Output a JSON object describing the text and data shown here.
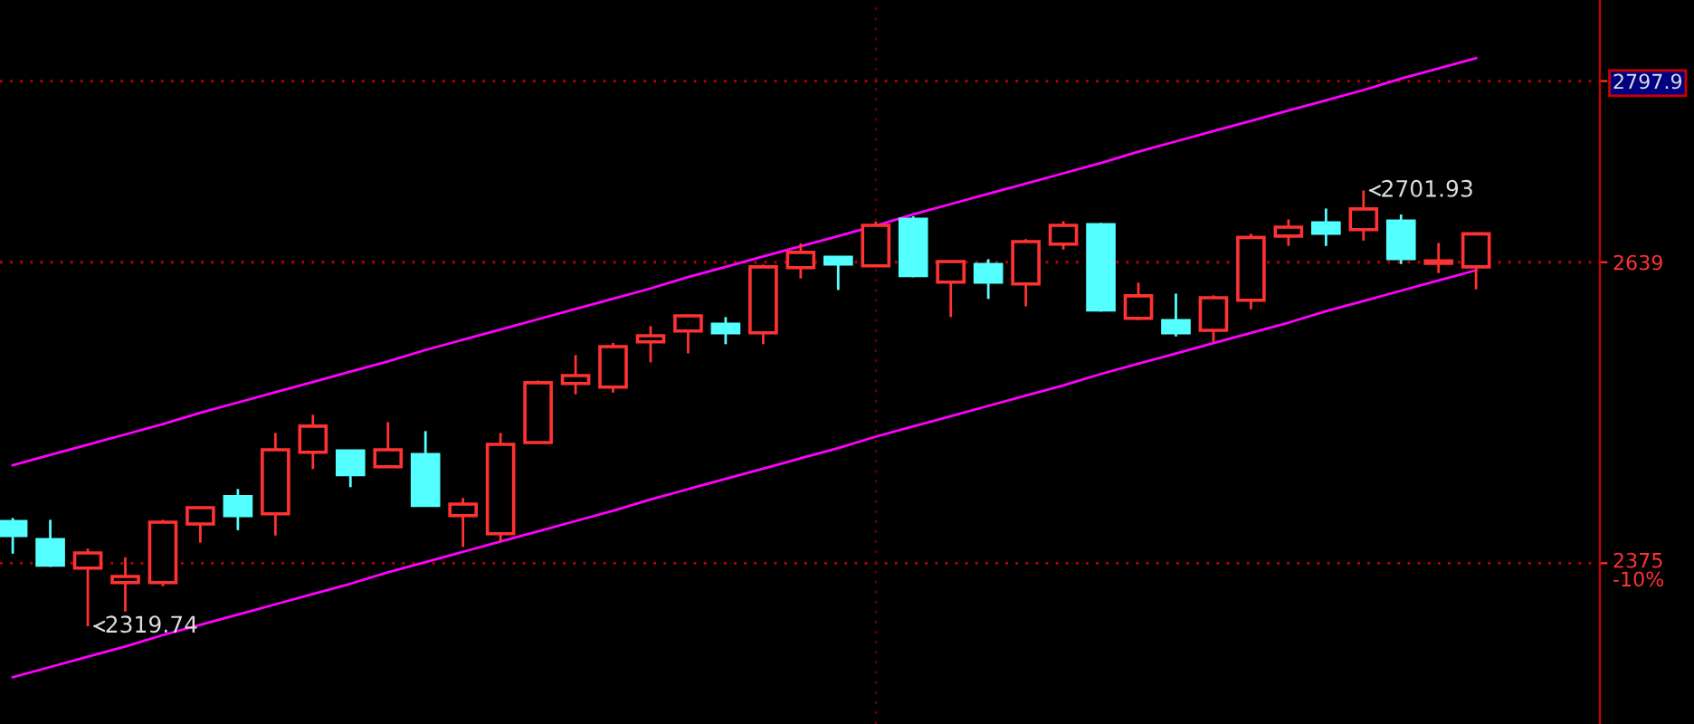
{
  "chart_data": {
    "type": "candlestick",
    "categories": [
      null,
      null,
      null,
      null,
      null,
      null,
      null,
      null,
      null,
      null,
      null,
      null,
      null,
      null,
      null,
      null,
      null,
      null,
      null,
      null,
      null,
      null,
      null,
      null,
      null,
      null,
      null,
      null,
      null,
      null,
      null,
      null,
      null,
      null,
      null,
      null,
      null,
      null,
      null,
      null
    ],
    "ohlc": [
      [
        2411.5,
        2414.7,
        2383.4,
        2399.3
      ],
      [
        2395.6,
        2413.1,
        2371.8,
        2373.4
      ],
      [
        2370.7,
        2387.7,
        2319.74,
        2384.0
      ],
      [
        2358.0,
        2380.2,
        2332.6,
        2363.4
      ],
      [
        2358.0,
        2413.1,
        2354.8,
        2411.0
      ],
      [
        2409.4,
        2423.7,
        2393.0,
        2423.7
      ],
      [
        2433.3,
        2440.1,
        2404.0,
        2416.8
      ],
      [
        2418.3,
        2489.3,
        2399.3,
        2474.5
      ],
      [
        2472.3,
        2505.2,
        2457.6,
        2495.2
      ],
      [
        2473.4,
        2473.4,
        2441.7,
        2452.8
      ],
      [
        2459.6,
        2498.8,
        2459.6,
        2474.5
      ],
      [
        2470.2,
        2490.9,
        2425.8,
        2425.8
      ],
      [
        2416.8,
        2432.2,
        2389.3,
        2426.9
      ],
      [
        2400.9,
        2489.3,
        2394.0,
        2479.3
      ],
      [
        2480.9,
        2535.3,
        2480.9,
        2533.3
      ],
      [
        2532.6,
        2557.6,
        2523.1,
        2539.6
      ],
      [
        2529.5,
        2568.2,
        2524.7,
        2565.0
      ],
      [
        2569.2,
        2583.0,
        2551.2,
        2574.5
      ],
      [
        2578.7,
        2592.0,
        2559.1,
        2592.0
      ],
      [
        2584.5,
        2590.9,
        2567.1,
        2577.1
      ],
      [
        2577.1,
        2636.9,
        2567.1,
        2634.9
      ],
      [
        2634.2,
        2655.5,
        2624.7,
        2647.6
      ],
      [
        2643.3,
        2643.3,
        2614.7,
        2637.4
      ],
      [
        2635.8,
        2674.6,
        2635.8,
        2671.4
      ],
      [
        2676.6,
        2679.3,
        2625.8,
        2627.4
      ],
      [
        2621.5,
        2639.6,
        2590.9,
        2639.6
      ],
      [
        2636.9,
        2641.7,
        2606.8,
        2621.5
      ],
      [
        2620.0,
        2659.2,
        2600.4,
        2657.1
      ],
      [
        2654.9,
        2675.0,
        2650.1,
        2671.4
      ],
      [
        2671.9,
        2673.4,
        2595.7,
        2597.2
      ],
      [
        2589.8,
        2621.1,
        2588.2,
        2609.5
      ],
      [
        2587.7,
        2611.5,
        2573.9,
        2577.1
      ],
      [
        2579.3,
        2610.0,
        2569.2,
        2607.9
      ],
      [
        2605.7,
        2663.9,
        2597.7,
        2660.7
      ],
      [
        2661.9,
        2676.6,
        2653.3,
        2669.8
      ],
      [
        2673.4,
        2686.1,
        2653.3,
        2664.4
      ],
      [
        2667.6,
        2701.93,
        2658.0,
        2685.7
      ],
      [
        2675.0,
        2680.9,
        2637.4,
        2642.2
      ],
      [
        2638.0,
        2656.0,
        2629.5,
        2640.1
      ],
      [
        2634.9,
        2663.9,
        2615.2,
        2663.9
      ]
    ],
    "colors": [
      "#54ffff",
      "#54ffff",
      "#ff3232",
      "#ff3232",
      "#ff3232",
      "#ff3232",
      "#54ffff",
      "#ff3232",
      "#ff3232",
      "#54ffff",
      "#ff3232",
      "#54ffff",
      "#ff3232",
      "#ff3232",
      "#ff3232",
      "#ff3232",
      "#ff3232",
      "#ff3232",
      "#ff3232",
      "#54ffff",
      "#ff3232",
      "#ff3232",
      "#54ffff",
      "#ff3232",
      "#54ffff",
      "#ff3232",
      "#54ffff",
      "#ff3232",
      "#ff3232",
      "#54ffff",
      "#ff3232",
      "#54ffff",
      "#ff3232",
      "#ff3232",
      "#ff3232",
      "#54ffff",
      "#ff3232",
      "#54ffff",
      "#ff3232",
      "#ff3232"
    ],
    "series": [
      {
        "type": "line",
        "color": "#ff00ff",
        "values": [
          2461,
          2470,
          2479,
          2488,
          2497,
          2507,
          2516,
          2525,
          2534,
          2543,
          2552,
          2562,
          2571,
          2580,
          2589,
          2598,
          2607,
          2616,
          2626,
          2635,
          2644,
          2653,
          2662,
          2671,
          2681,
          2690,
          2699,
          2708,
          2717,
          2726,
          2736,
          2745,
          2754,
          2763,
          2772,
          2781,
          2790,
          2800,
          2809,
          2818
        ]
      },
      {
        "type": "line",
        "color": "#ff00ff",
        "values": [
          2275,
          2284,
          2293,
          2302,
          2312,
          2321,
          2330,
          2339,
          2348,
          2357,
          2367,
          2376,
          2385,
          2394,
          2403,
          2412,
          2421,
          2431,
          2440,
          2449,
          2458,
          2467,
          2476,
          2486,
          2495,
          2504,
          2513,
          2522,
          2531,
          2541,
          2550,
          2559,
          2568,
          2577,
          2586,
          2596,
          2605,
          2614,
          2623,
          2632
        ]
      }
    ],
    "ylim": [
      2234,
      2869
    ],
    "yticks": [
      {
        "value": 2375,
        "label": "2375\n-10%"
      },
      2639,
      2797.9
    ],
    "grid": "y",
    "annotations": [
      "2319.74",
      "2701.93"
    ]
  }
}
